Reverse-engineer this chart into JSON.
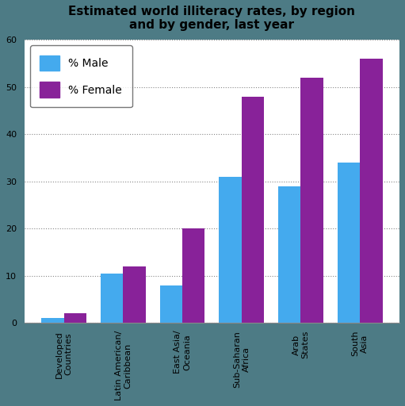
{
  "title": "Estimated world illiteracy rates, by region\nand by gender, last year",
  "categories": [
    "Developed\nCountries",
    "Latin American/\nCaribbean",
    "East Asia/\nOceania",
    "Sub-Saharan\nAfrica",
    "Arab\nStates",
    "South\nAsia"
  ],
  "male_values": [
    1,
    10.5,
    8,
    31,
    29,
    34
  ],
  "female_values": [
    2,
    12,
    20,
    48,
    52,
    56
  ],
  "male_color": "#44AAEE",
  "female_color": "#882299",
  "ylim": [
    0,
    60
  ],
  "yticks": [
    0,
    10,
    20,
    30,
    40,
    50,
    60
  ],
  "fig_bg_color": "#4D7B85",
  "plot_bg_color": "#FFFFFF",
  "legend_male": "% Male",
  "legend_female": "% Female",
  "title_fontsize": 11,
  "tick_fontsize": 8,
  "bar_width": 0.38
}
